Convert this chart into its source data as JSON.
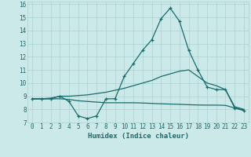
{
  "xlabel": "Humidex (Indice chaleur)",
  "xlim": [
    -0.5,
    23.5
  ],
  "ylim": [
    7,
    16.2
  ],
  "yticks": [
    7,
    8,
    9,
    10,
    11,
    12,
    13,
    14,
    15,
    16
  ],
  "xticks": [
    0,
    1,
    2,
    3,
    4,
    5,
    6,
    7,
    8,
    9,
    10,
    11,
    12,
    13,
    14,
    15,
    16,
    17,
    18,
    19,
    20,
    21,
    22,
    23
  ],
  "bg_color": "#cce9e9",
  "grid_color": "#aad0d0",
  "line_color": "#1a6b6b",
  "line1_x": [
    0,
    1,
    2,
    3,
    4,
    5,
    6,
    7,
    8,
    9,
    10,
    11,
    12,
    13,
    14,
    15,
    16,
    17,
    18,
    19,
    20,
    21,
    22,
    23
  ],
  "line1_y": [
    8.8,
    8.8,
    8.8,
    9.0,
    8.6,
    7.5,
    7.3,
    7.5,
    8.8,
    8.8,
    10.5,
    11.5,
    12.5,
    13.3,
    14.9,
    15.7,
    14.7,
    12.5,
    11.0,
    9.7,
    9.5,
    9.5,
    8.1,
    7.9
  ],
  "line2_x": [
    0,
    1,
    2,
    3,
    4,
    5,
    6,
    7,
    8,
    9,
    10,
    11,
    12,
    13,
    14,
    15,
    16,
    17,
    18,
    19,
    20,
    21,
    22,
    23
  ],
  "line2_y": [
    8.8,
    8.8,
    8.85,
    9.0,
    9.0,
    9.05,
    9.1,
    9.2,
    9.3,
    9.45,
    9.6,
    9.8,
    10.0,
    10.2,
    10.5,
    10.7,
    10.9,
    11.0,
    10.5,
    10.0,
    9.8,
    9.5,
    8.2,
    8.0
  ],
  "line3_x": [
    0,
    1,
    2,
    3,
    4,
    5,
    6,
    7,
    8,
    9,
    10,
    11,
    12,
    13,
    14,
    15,
    16,
    17,
    18,
    19,
    20,
    21,
    22,
    23
  ],
  "line3_y": [
    8.8,
    8.8,
    8.8,
    8.8,
    8.75,
    8.65,
    8.6,
    8.55,
    8.5,
    8.5,
    8.5,
    8.5,
    8.48,
    8.45,
    8.42,
    8.4,
    8.38,
    8.35,
    8.33,
    8.32,
    8.32,
    8.3,
    8.1,
    7.95
  ]
}
